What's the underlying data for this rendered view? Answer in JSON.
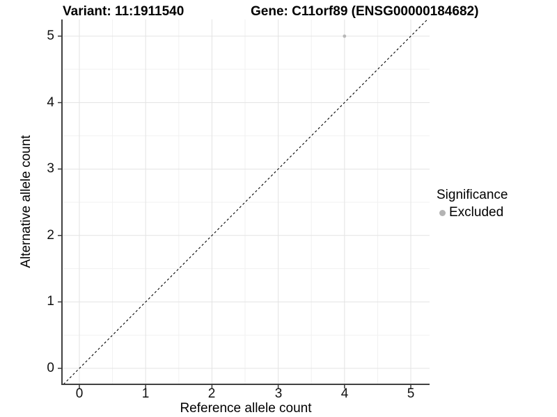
{
  "title": {
    "variant": "Variant: 11:1911540",
    "gene": "Gene: C11orf89 (ENSG00000184682)"
  },
  "axes": {
    "x": {
      "label": "Reference allele count",
      "tick_labels": [
        "0",
        "1",
        "2",
        "3",
        "4",
        "5"
      ]
    },
    "y": {
      "label": "Alternative allele count",
      "tick_labels": [
        "0",
        "1",
        "2",
        "3",
        "4",
        "5"
      ]
    }
  },
  "legend": {
    "title": "Significance",
    "items": [
      {
        "label": "Excluded",
        "marker": "circle",
        "color": "#b3b3b3"
      }
    ]
  },
  "colors": {
    "grid_major": "#e3e3e3",
    "grid_minor": "#f1f1f1",
    "axis_line": "#404040",
    "tick_mark": "#383838",
    "point": "#b8b8b8",
    "reference_line": "#000000",
    "background": "#ffffff"
  },
  "chart_data": {
    "type": "scatter",
    "title": "Variant: 11:1911540    Gene: C11orf89 (ENSG00000184682)",
    "xlabel": "Reference allele count",
    "ylabel": "Alternative allele count",
    "xlim": [
      -0.27,
      5.28
    ],
    "ylim": [
      -0.24,
      5.25
    ],
    "xticks": [
      0,
      1,
      2,
      3,
      4,
      5
    ],
    "yticks": [
      0,
      1,
      2,
      3,
      4,
      5
    ],
    "grid": "major gridlines at integers, minor gridlines at 0.5 steps",
    "legend_position": "right",
    "series": [
      {
        "name": "Excluded",
        "color": "#b8b8b8",
        "points": [
          [
            4,
            5
          ]
        ]
      }
    ],
    "reference_line": {
      "kind": "identity y=x",
      "style": "dashed",
      "color": "#000000"
    }
  }
}
